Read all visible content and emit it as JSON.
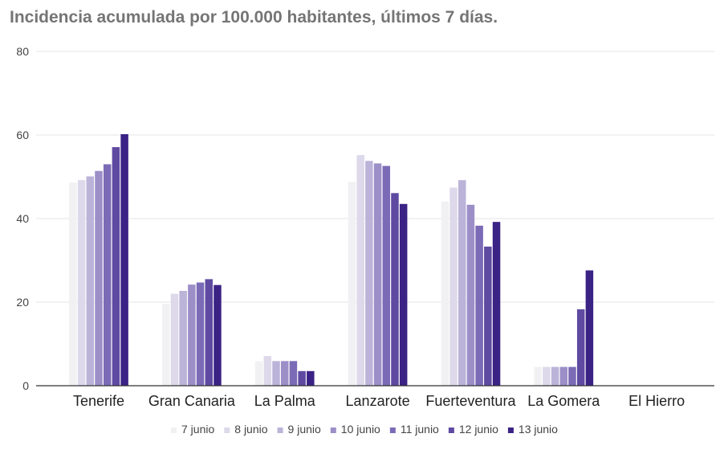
{
  "title": "Incidencia acumulada por 100.000 habitantes, últimos 7 días.",
  "chart_data": {
    "type": "bar",
    "title": "Incidencia acumulada por 100.000 habitantes, últimos 7 días.",
    "xlabel": "",
    "ylabel": "",
    "ylim": [
      0,
      80
    ],
    "yticks": [
      0,
      20,
      40,
      60,
      80
    ],
    "grid": true,
    "legend_position": "bottom",
    "categories": [
      "Tenerife",
      "Gran Canaria",
      "La Palma",
      "Lanzarote",
      "Fuerteventura",
      "La Gomera",
      "El Hierro"
    ],
    "series": [
      {
        "name": "7 junio",
        "color": "#f1f1f3",
        "values": [
          48.6,
          19.6,
          5.9,
          48.8,
          44.1,
          4.5,
          0
        ]
      },
      {
        "name": "8 junio",
        "color": "#ddd9ea",
        "values": [
          49.2,
          22.0,
          7.1,
          55.2,
          47.4,
          4.5,
          0
        ]
      },
      {
        "name": "9 junio",
        "color": "#bcb3d9",
        "values": [
          50.1,
          22.7,
          5.9,
          53.8,
          49.2,
          4.5,
          0
        ]
      },
      {
        "name": "10 junio",
        "color": "#9c8fc8",
        "values": [
          51.4,
          24.2,
          5.9,
          53.2,
          43.3,
          4.5,
          0
        ]
      },
      {
        "name": "11 junio",
        "color": "#7b6bb6",
        "values": [
          53.0,
          24.7,
          5.9,
          52.6,
          38.3,
          4.5,
          0
        ]
      },
      {
        "name": "12 junio",
        "color": "#5f4aa2",
        "values": [
          57.1,
          25.5,
          3.5,
          46.1,
          33.3,
          18.3,
          0
        ]
      },
      {
        "name": "13 junio",
        "color": "#3b2285",
        "values": [
          60.2,
          24.1,
          3.5,
          43.5,
          39.2,
          27.6,
          0
        ]
      }
    ]
  }
}
